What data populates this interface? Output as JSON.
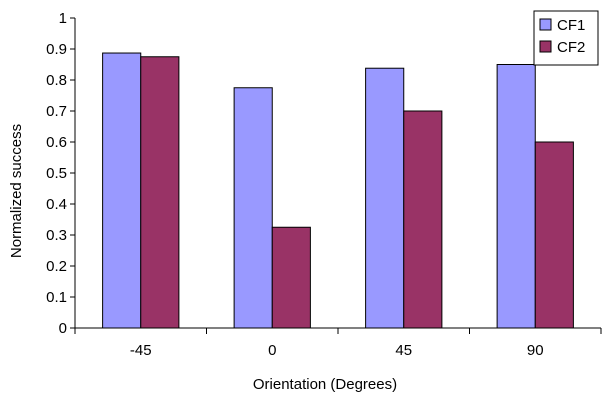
{
  "chart_data": {
    "type": "bar",
    "title": "",
    "xlabel": "Orientation (Degrees)",
    "ylabel": "Normalized success",
    "categories": [
      "-45",
      "0",
      "45",
      "90"
    ],
    "series": [
      {
        "name": "CF1",
        "values": [
          0.887,
          0.775,
          0.838,
          0.85
        ],
        "color": "#9999ff"
      },
      {
        "name": "CF2",
        "values": [
          0.875,
          0.325,
          0.7,
          0.6
        ],
        "color": "#993366"
      }
    ],
    "ylim": [
      0,
      1
    ],
    "yticks": [
      "0",
      "0.1",
      "0.2",
      "0.3",
      "0.4",
      "0.5",
      "0.6",
      "0.7",
      "0.8",
      "0.9",
      "1"
    ],
    "grid": false,
    "legend_position": "top-right"
  }
}
